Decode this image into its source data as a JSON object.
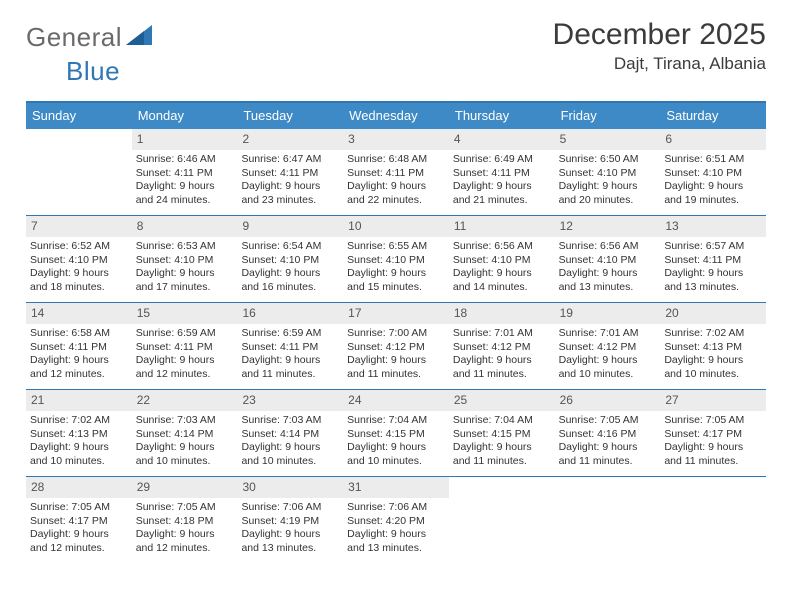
{
  "brand": {
    "general": "General",
    "blue": "Blue"
  },
  "title": "December 2025",
  "subtitle": "Dajt, Tirana, Albania",
  "colors": {
    "accent": "#2f77b5",
    "header_bg": "#3d8ac7",
    "header_text": "#ffffff",
    "daynum_bg": "#ececec",
    "daynum_text": "#555555",
    "body_text": "#333333",
    "logo_gray": "#6a6a6a"
  },
  "days_of_week": [
    "Sunday",
    "Monday",
    "Tuesday",
    "Wednesday",
    "Thursday",
    "Friday",
    "Saturday"
  ],
  "weeks": [
    [
      {
        "day": "",
        "sunrise": "",
        "sunset": "",
        "daylight": ""
      },
      {
        "day": "1",
        "sunrise": "Sunrise: 6:46 AM",
        "sunset": "Sunset: 4:11 PM",
        "daylight": "Daylight: 9 hours and 24 minutes."
      },
      {
        "day": "2",
        "sunrise": "Sunrise: 6:47 AM",
        "sunset": "Sunset: 4:11 PM",
        "daylight": "Daylight: 9 hours and 23 minutes."
      },
      {
        "day": "3",
        "sunrise": "Sunrise: 6:48 AM",
        "sunset": "Sunset: 4:11 PM",
        "daylight": "Daylight: 9 hours and 22 minutes."
      },
      {
        "day": "4",
        "sunrise": "Sunrise: 6:49 AM",
        "sunset": "Sunset: 4:11 PM",
        "daylight": "Daylight: 9 hours and 21 minutes."
      },
      {
        "day": "5",
        "sunrise": "Sunrise: 6:50 AM",
        "sunset": "Sunset: 4:10 PM",
        "daylight": "Daylight: 9 hours and 20 minutes."
      },
      {
        "day": "6",
        "sunrise": "Sunrise: 6:51 AM",
        "sunset": "Sunset: 4:10 PM",
        "daylight": "Daylight: 9 hours and 19 minutes."
      }
    ],
    [
      {
        "day": "7",
        "sunrise": "Sunrise: 6:52 AM",
        "sunset": "Sunset: 4:10 PM",
        "daylight": "Daylight: 9 hours and 18 minutes."
      },
      {
        "day": "8",
        "sunrise": "Sunrise: 6:53 AM",
        "sunset": "Sunset: 4:10 PM",
        "daylight": "Daylight: 9 hours and 17 minutes."
      },
      {
        "day": "9",
        "sunrise": "Sunrise: 6:54 AM",
        "sunset": "Sunset: 4:10 PM",
        "daylight": "Daylight: 9 hours and 16 minutes."
      },
      {
        "day": "10",
        "sunrise": "Sunrise: 6:55 AM",
        "sunset": "Sunset: 4:10 PM",
        "daylight": "Daylight: 9 hours and 15 minutes."
      },
      {
        "day": "11",
        "sunrise": "Sunrise: 6:56 AM",
        "sunset": "Sunset: 4:10 PM",
        "daylight": "Daylight: 9 hours and 14 minutes."
      },
      {
        "day": "12",
        "sunrise": "Sunrise: 6:56 AM",
        "sunset": "Sunset: 4:10 PM",
        "daylight": "Daylight: 9 hours and 13 minutes."
      },
      {
        "day": "13",
        "sunrise": "Sunrise: 6:57 AM",
        "sunset": "Sunset: 4:11 PM",
        "daylight": "Daylight: 9 hours and 13 minutes."
      }
    ],
    [
      {
        "day": "14",
        "sunrise": "Sunrise: 6:58 AM",
        "sunset": "Sunset: 4:11 PM",
        "daylight": "Daylight: 9 hours and 12 minutes."
      },
      {
        "day": "15",
        "sunrise": "Sunrise: 6:59 AM",
        "sunset": "Sunset: 4:11 PM",
        "daylight": "Daylight: 9 hours and 12 minutes."
      },
      {
        "day": "16",
        "sunrise": "Sunrise: 6:59 AM",
        "sunset": "Sunset: 4:11 PM",
        "daylight": "Daylight: 9 hours and 11 minutes."
      },
      {
        "day": "17",
        "sunrise": "Sunrise: 7:00 AM",
        "sunset": "Sunset: 4:12 PM",
        "daylight": "Daylight: 9 hours and 11 minutes."
      },
      {
        "day": "18",
        "sunrise": "Sunrise: 7:01 AM",
        "sunset": "Sunset: 4:12 PM",
        "daylight": "Daylight: 9 hours and 11 minutes."
      },
      {
        "day": "19",
        "sunrise": "Sunrise: 7:01 AM",
        "sunset": "Sunset: 4:12 PM",
        "daylight": "Daylight: 9 hours and 10 minutes."
      },
      {
        "day": "20",
        "sunrise": "Sunrise: 7:02 AM",
        "sunset": "Sunset: 4:13 PM",
        "daylight": "Daylight: 9 hours and 10 minutes."
      }
    ],
    [
      {
        "day": "21",
        "sunrise": "Sunrise: 7:02 AM",
        "sunset": "Sunset: 4:13 PM",
        "daylight": "Daylight: 9 hours and 10 minutes."
      },
      {
        "day": "22",
        "sunrise": "Sunrise: 7:03 AM",
        "sunset": "Sunset: 4:14 PM",
        "daylight": "Daylight: 9 hours and 10 minutes."
      },
      {
        "day": "23",
        "sunrise": "Sunrise: 7:03 AM",
        "sunset": "Sunset: 4:14 PM",
        "daylight": "Daylight: 9 hours and 10 minutes."
      },
      {
        "day": "24",
        "sunrise": "Sunrise: 7:04 AM",
        "sunset": "Sunset: 4:15 PM",
        "daylight": "Daylight: 9 hours and 10 minutes."
      },
      {
        "day": "25",
        "sunrise": "Sunrise: 7:04 AM",
        "sunset": "Sunset: 4:15 PM",
        "daylight": "Daylight: 9 hours and 11 minutes."
      },
      {
        "day": "26",
        "sunrise": "Sunrise: 7:05 AM",
        "sunset": "Sunset: 4:16 PM",
        "daylight": "Daylight: 9 hours and 11 minutes."
      },
      {
        "day": "27",
        "sunrise": "Sunrise: 7:05 AM",
        "sunset": "Sunset: 4:17 PM",
        "daylight": "Daylight: 9 hours and 11 minutes."
      }
    ],
    [
      {
        "day": "28",
        "sunrise": "Sunrise: 7:05 AM",
        "sunset": "Sunset: 4:17 PM",
        "daylight": "Daylight: 9 hours and 12 minutes."
      },
      {
        "day": "29",
        "sunrise": "Sunrise: 7:05 AM",
        "sunset": "Sunset: 4:18 PM",
        "daylight": "Daylight: 9 hours and 12 minutes."
      },
      {
        "day": "30",
        "sunrise": "Sunrise: 7:06 AM",
        "sunset": "Sunset: 4:19 PM",
        "daylight": "Daylight: 9 hours and 13 minutes."
      },
      {
        "day": "31",
        "sunrise": "Sunrise: 7:06 AM",
        "sunset": "Sunset: 4:20 PM",
        "daylight": "Daylight: 9 hours and 13 minutes."
      },
      {
        "day": "",
        "sunrise": "",
        "sunset": "",
        "daylight": ""
      },
      {
        "day": "",
        "sunrise": "",
        "sunset": "",
        "daylight": ""
      },
      {
        "day": "",
        "sunrise": "",
        "sunset": "",
        "daylight": ""
      }
    ]
  ]
}
